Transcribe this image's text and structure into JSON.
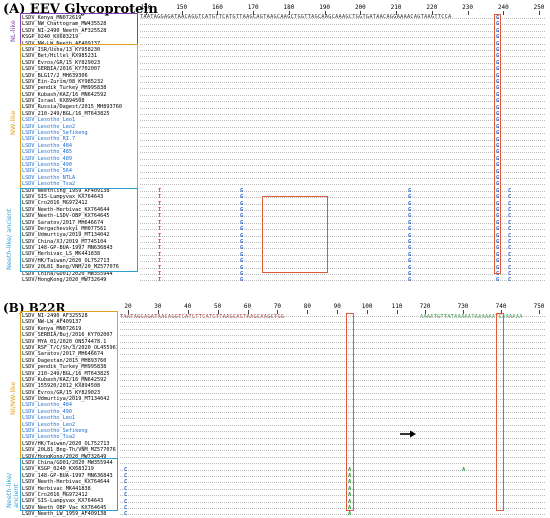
{
  "panelA": {
    "title": "(A) EEV Glycoprotein",
    "ruler": [
      "140",
      "150",
      "160",
      "170",
      "180",
      "190",
      "200",
      "210",
      "220",
      "230",
      "240",
      "250"
    ],
    "groups": [
      {
        "label": "NL-like",
        "color": "#8040b0"
      },
      {
        "label": "NW-like",
        "color": "#e0a020"
      },
      {
        "label": "Neeth-like/ ancient",
        "color": "#30a0d0"
      }
    ],
    "consensus": "TAATAGGAGATAACAGGTCATGTTCATGTTAAGCAGTAAGCAAGCTGGTTAGCAAGCAAAGCTGGTGATAACAGGAAAACAGTAAGTTCCA",
    "sequences": [
      {
        "name": "LSDV_Kenya_MN072619",
        "blue": false
      },
      {
        "name": "LSDV_NW_Chattogram_MW435528",
        "blue": false
      },
      {
        "name": "LSDV_NI-2490_Neeth_AF325528",
        "blue": false
      },
      {
        "name": "KSGP_0240_KX683219",
        "blue": false
      },
      {
        "name": "LSDV_NW-LW_Neeth_AF409137",
        "blue": false
      },
      {
        "name": "LSDV_ISR/Usha/13_KY958230",
        "blue": false
      },
      {
        "name": "LSDV_Bet/Hillel_KX985231",
        "blue": false
      },
      {
        "name": "LSDV_Evros/GR/15_KY829023",
        "blue": false
      },
      {
        "name": "LSDV_SERBIA/2016_KY702007",
        "blue": false
      },
      {
        "name": "LSDV_BLG17/2_MH639306",
        "blue": false
      },
      {
        "name": "LSDV_Ein-Zurim/08_KY985232",
        "blue": false
      },
      {
        "name": "LSDV_pendik_Turkey_MH995838",
        "blue": false
      },
      {
        "name": "LSDV_Kubash/KAZ/16_MN642592",
        "blue": false
      },
      {
        "name": "LSDV_Israel_KX894508",
        "blue": false
      },
      {
        "name": "LSDV_Russia/Dagest/2015_MH893760",
        "blue": false
      },
      {
        "name": "LSDV_210-249/BGL/16_MT643825",
        "blue": false
      },
      {
        "name": "LSDV_Lesotho_Leo1",
        "blue": true
      },
      {
        "name": "LSDV_Lesotho_Leo2",
        "blue": true
      },
      {
        "name": "LSDV_Lesotho_Sefikeng",
        "blue": true
      },
      {
        "name": "LSDV_Lesotho_RI.7",
        "blue": true
      },
      {
        "name": "LSDV_Lesotho_484",
        "blue": true
      },
      {
        "name": "LSDV_Lesotho_485",
        "blue": true
      },
      {
        "name": "LSDV_Lesotho_489",
        "blue": true
      },
      {
        "name": "LSDV_Lesotho_490",
        "blue": true
      },
      {
        "name": "LSDV_Lesotho_564",
        "blue": true
      },
      {
        "name": "LSDV_Lesotho_NTLA",
        "blue": true
      },
      {
        "name": "LSDV_Lesotho_Tsa2",
        "blue": true
      },
      {
        "name": "LSDV_Neethling_1959_AF409138",
        "blue": false
      },
      {
        "name": "LSDV_SIS-Lumpyvax_KX764643",
        "blue": false
      },
      {
        "name": "LSDV_Cro2016_MG972412",
        "blue": false
      },
      {
        "name": "LSDV_Neeth-Herbivac_KX764644",
        "blue": false
      },
      {
        "name": "LSDV_Neeth-LSDV-OBP_KX764645",
        "blue": false
      },
      {
        "name": "LSDV_Saratov/2017_MH646674",
        "blue": false
      },
      {
        "name": "LSDV_Dergachevskyi_MH077561",
        "blue": false
      },
      {
        "name": "LSDV_Udmurtiya/2019_MT134042",
        "blue": false
      },
      {
        "name": "LSDV_China/XJ/2019_MT745104",
        "blue": false
      },
      {
        "name": "LSDV_148-GP-BUA-1997_MN636843",
        "blue": false
      },
      {
        "name": "LSDV_Herbivac_LS_MK441838",
        "blue": false
      },
      {
        "name": "LSDV/HK/Taiwan/2020_OL752713",
        "blue": false
      },
      {
        "name": "LSDV_20L81_Bang/VNM/20_MZ577076",
        "blue": false
      },
      {
        "name": "LSDV_China/GD01/2020_MW355944",
        "blue": false
      },
      {
        "name": "LSDV/HongKong/2020_MW732649",
        "blue": false
      }
    ],
    "mutations": [
      {
        "text": "G",
        "row": 0
      },
      {
        "text": "G",
        "row": 1
      },
      {
        "text": "G",
        "row": 2
      },
      {
        "text": "G",
        "row": 3
      },
      {
        "text": "C",
        "row": 27
      },
      {
        "text": "C",
        "row": 28
      },
      {
        "text": "C",
        "row": 29
      },
      {
        "text": "C",
        "row": 30
      }
    ]
  },
  "panelB": {
    "title": "(B) B22R",
    "ruler": [
      "20",
      "30",
      "40",
      "50",
      "60",
      "70",
      "80",
      "90",
      "100",
      "110",
      "720",
      "730",
      "740",
      "750"
    ],
    "groups": [
      {
        "label": "NI/NW-like",
        "color": "#e0a020"
      },
      {
        "label": "Neeth-like/ ancient",
        "color": "#30a0d0"
      }
    ],
    "consensus": "TAATAGGAGATAACAGGTCATGTTCATGTTAAGCAGTAAGCAAGCTGG",
    "consensus_right": "AAAATGTTATAAAAATAAAAAATCAAAAAA",
    "sequences": [
      {
        "name": "LSDV_NI-2490_AF325528",
        "blue": false
      },
      {
        "name": "LSDV_NW-LW_AF409137",
        "blue": false
      },
      {
        "name": "LSDV_Kenya_MN072619",
        "blue": false
      },
      {
        "name": "LSDV_SERBIA/Buj/2016_KY702007",
        "blue": false
      },
      {
        "name": "LSDV_MYA_01/2020_ON574478.1",
        "blue": false
      },
      {
        "name": "LSDV_RSF_T/C/Sh/3/2020_OL455961",
        "blue": false
      },
      {
        "name": "LSDV_Saratov/2017_MH646674",
        "blue": false
      },
      {
        "name": "LSDV_Dagestan/2015_MH893760",
        "blue": false
      },
      {
        "name": "LSDV_pendik_Turkey_MH995838",
        "blue": false
      },
      {
        "name": "LSDV_210-249/BGL/16_MT643825",
        "blue": false
      },
      {
        "name": "LSDV_Kubash/KAZ/16_MN642592",
        "blue": false
      },
      {
        "name": "LSDV_155920/2012_KX894508",
        "blue": false
      },
      {
        "name": "LSDV_Evros/GR/15_KY829023",
        "blue": false
      },
      {
        "name": "LSDV_Udmurtiya/2019_MT134042",
        "blue": false
      },
      {
        "name": "LSDV_Lesotho_484",
        "blue": true
      },
      {
        "name": "LSDV_Lesotho_490",
        "blue": true
      },
      {
        "name": "LSDV_Lesotho_Leo1",
        "blue": true
      },
      {
        "name": "LSDV_Lesotho_Leo2",
        "blue": true
      },
      {
        "name": "LSDV_Lesotho_Sefikeng",
        "blue": true
      },
      {
        "name": "LSDV_Lesotho_Tsa2",
        "blue": true
      },
      {
        "name": "LSDV/HK/Taiwan/2020_OL752713",
        "blue": false
      },
      {
        "name": "LSDV_20L81_Bng-Th/VNM_MZ577076",
        "blue": false
      },
      {
        "name": "LSDV/HongKong/2020_MW732649",
        "blue": false
      },
      {
        "name": "LSDV_China/GD01/2020_MW355944",
        "blue": false
      },
      {
        "name": "LSDV_KSGP_0240_KX683219",
        "blue": false
      },
      {
        "name": "LSDV_148-GP-BUA-1997_MN636843",
        "blue": false
      },
      {
        "name": "LSDV_Neeth-Herbivac_KX764644",
        "blue": false
      },
      {
        "name": "LSDV_Herbivac_MK441838",
        "blue": false
      },
      {
        "name": "LSDV_Cro2016_MG972412",
        "blue": false
      },
      {
        "name": "LSDV_SIS-Lumpyvax_KX764643",
        "blue": false
      },
      {
        "name": "LSDV_Neeth_OBP_Vac_KX764645",
        "blue": false
      },
      {
        "name": "LSDV_Neeth_LW_1959_AF409138",
        "blue": false
      }
    ]
  }
}
